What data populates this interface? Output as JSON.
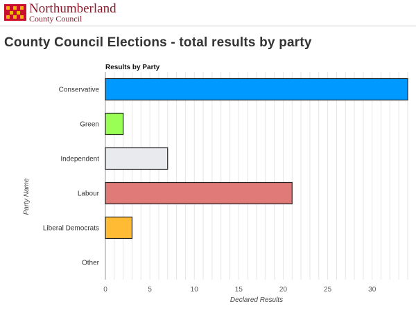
{
  "header": {
    "org_name": "Northumberland",
    "org_sub": "County Council",
    "logo_colors": {
      "red": "#c8102e",
      "gold": "#f2b705"
    }
  },
  "page": {
    "title": "County Council Elections - total results by party"
  },
  "chart_data": {
    "type": "bar",
    "orientation": "horizontal",
    "title": "Results by Party",
    "xlabel": "Declared Results",
    "ylabel": "Party Name",
    "categories": [
      "Conservative",
      "Green",
      "Independent",
      "Labour",
      "Liberal Democrats",
      "Other"
    ],
    "values": [
      34,
      2,
      7,
      21,
      3,
      0
    ],
    "colors": [
      "#0099ff",
      "#99ff55",
      "#e8eaee",
      "#e07a78",
      "#ffbb33",
      "#cccccc"
    ],
    "xlim": [
      0,
      34
    ],
    "xticks": [
      0,
      5,
      10,
      15,
      20,
      25,
      30
    ],
    "grid": true
  }
}
